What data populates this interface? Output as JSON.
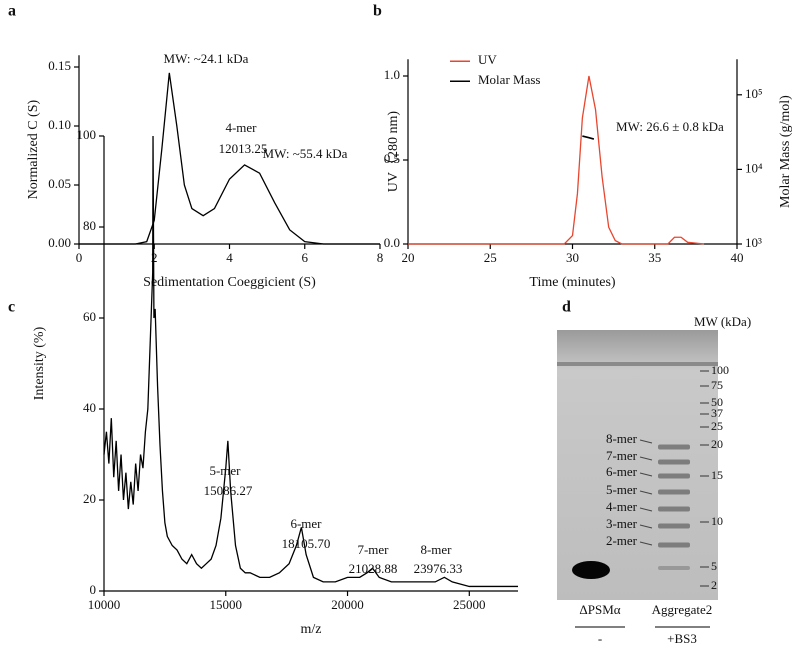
{
  "chart_data": [
    {
      "type": "line",
      "panel_label": "a",
      "x_label": "Sedimentation Coeggicient (S)",
      "y_label": "Normalized C (S)",
      "x": [
        0,
        1.5,
        1.8,
        2.0,
        2.2,
        2.4,
        2.6,
        2.8,
        3.0,
        3.3,
        3.6,
        4.0,
        4.4,
        4.8,
        5.2,
        5.6,
        6.0,
        6.5,
        8
      ],
      "values": [
        0,
        0,
        0.002,
        0.02,
        0.08,
        0.145,
        0.1,
        0.05,
        0.03,
        0.024,
        0.03,
        0.055,
        0.067,
        0.06,
        0.035,
        0.012,
        0.002,
        0,
        0
      ],
      "color": "#000000",
      "xlim": [
        0,
        8
      ],
      "xticks": [
        0,
        2,
        4,
        6,
        8
      ],
      "ylim": [
        0,
        0.16
      ],
      "yticks": [
        {
          "value": 0,
          "label": "0.00"
        },
        0.05,
        {
          "value": 0.1,
          "label": "0.10"
        },
        0.15
      ],
      "annotations": [
        "MW: ~24.1 kDa",
        "MW: ~55.4 kDa"
      ]
    },
    {
      "type": "line",
      "panel_label": "b",
      "x_label": "Time (minutes)",
      "y_label": "UV（280 nm)",
      "y2_label": "Molar Mass (g/mol)",
      "series": [
        {
          "name": "UV",
          "color": "#e8462f",
          "x": [
            20,
            29.5,
            30,
            30.3,
            30.6,
            31,
            31.4,
            31.8,
            32.2,
            32.6,
            33,
            35.8,
            36.2,
            36.6,
            37,
            38
          ],
          "values": [
            0,
            0,
            0.05,
            0.3,
            0.75,
            1.0,
            0.8,
            0.4,
            0.1,
            0.02,
            0,
            0,
            0.04,
            0.04,
            0.01,
            0
          ]
        },
        {
          "name": "Molar Mass",
          "color": "#000000",
          "axis": "y2",
          "x": [
            30.6,
            31.0,
            31.3
          ],
          "values": [
            28000,
            26600,
            25500
          ]
        }
      ],
      "xlim": [
        20,
        40
      ],
      "xticks": [
        20,
        25,
        30,
        35,
        40
      ],
      "ylim": [
        0,
        1.1
      ],
      "yticks": [
        {
          "value": 0,
          "label": "0.0"
        },
        0.5,
        {
          "value": 1,
          "label": "1.0"
        }
      ],
      "y2lim": [
        1000,
        300000
      ],
      "y2_log": true,
      "y2ticks": [
        {
          "value": 1000,
          "label": "10³"
        },
        {
          "value": 10000,
          "label": "10⁴"
        },
        {
          "value": 100000,
          "label": "10⁵"
        }
      ],
      "legend": "upper left",
      "annotations": [
        "MW: 26.6 ± 0.8 kDa"
      ]
    },
    {
      "type": "line",
      "panel_label": "c",
      "x_label": "m/z",
      "y_label": "Intensity (%)",
      "x": [
        10000,
        10100,
        10200,
        10300,
        10400,
        10500,
        10600,
        10700,
        10800,
        10900,
        11000,
        11100,
        11200,
        11300,
        11400,
        11500,
        11600,
        11700,
        11800,
        11900,
        12000,
        12013,
        12050,
        12100,
        12200,
        12300,
        12400,
        12500,
        12600,
        12800,
        13000,
        13200,
        13400,
        13600,
        13800,
        14000,
        14200,
        14400,
        14600,
        14800,
        15000,
        15086,
        15200,
        15400,
        15600,
        15800,
        16000,
        16400,
        16800,
        17200,
        17600,
        17900,
        18105,
        18300,
        18600,
        19000,
        19500,
        20000,
        20500,
        20800,
        21028,
        21300,
        21800,
        22400,
        23000,
        23600,
        23976,
        24300,
        25000,
        26000,
        27000
      ],
      "values": [
        30,
        35,
        28,
        38,
        25,
        33,
        22,
        30,
        20,
        26,
        18,
        24,
        19,
        28,
        22,
        30,
        27,
        35,
        40,
        55,
        70,
        100,
        60,
        62,
        45,
        32,
        22,
        15,
        12,
        10,
        9,
        7,
        6,
        8,
        6,
        5,
        6,
        7,
        10,
        16,
        27,
        33,
        22,
        10,
        5,
        4,
        4,
        3,
        3,
        4,
        6,
        10,
        14,
        8,
        3,
        2,
        2,
        3,
        3,
        4,
        5,
        3,
        2,
        2,
        2,
        2,
        3,
        2,
        1,
        1,
        1
      ],
      "color": "#000000",
      "xlim": [
        10000,
        27000
      ],
      "xticks": [
        10000,
        15000,
        20000,
        25000
      ],
      "ylim": [
        0,
        100
      ],
      "yticks": [
        0,
        20,
        40,
        60,
        80,
        100
      ],
      "annotations": [
        "4-mer",
        "12013.25",
        "5-mer",
        "15086.27",
        "6-mer",
        "18105.70",
        "7-mer",
        "21028.88",
        "8-mer",
        "23976.33"
      ]
    }
  ],
  "gel": {
    "panel_label": "d",
    "mw_title": "MW (kDa)",
    "markers": [
      100,
      75,
      50,
      37,
      25,
      20,
      15,
      10,
      5,
      2
    ],
    "bands": [
      "8-mer",
      "7-mer",
      "6-mer",
      "5-mer",
      "4-mer",
      "3-mer",
      "2-mer"
    ],
    "lanes": [
      "ΔPSMα",
      "Aggregate2"
    ],
    "treatments": [
      "-",
      "+BS3"
    ]
  }
}
